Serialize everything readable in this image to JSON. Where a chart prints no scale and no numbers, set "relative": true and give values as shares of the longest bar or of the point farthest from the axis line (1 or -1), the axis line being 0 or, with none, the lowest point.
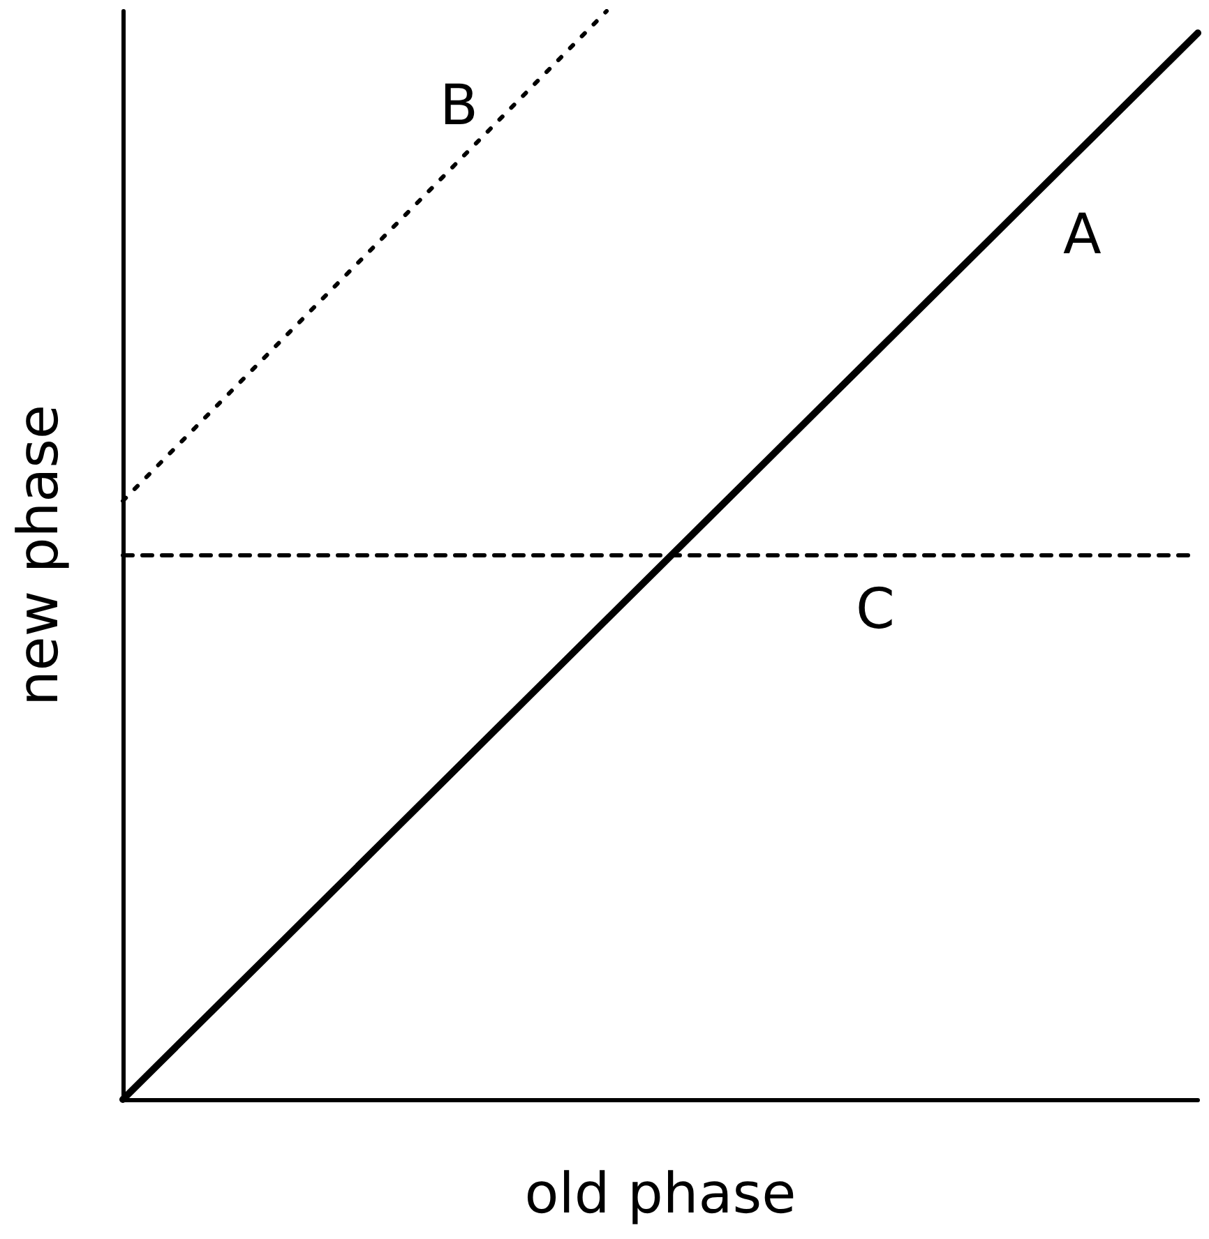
{
  "chart_data": {
    "type": "line",
    "relative": true,
    "xlabel": "old phase",
    "ylabel": "new phase",
    "grid": false,
    "legend": false,
    "marker": "none",
    "categories": [
      null,
      null,
      null,
      null,
      null,
      null,
      null,
      null,
      null,
      null,
      null,
      null,
      null,
      null,
      null,
      null,
      null,
      null,
      null,
      null,
      null
    ],
    "series": [
      {
        "name": "A",
        "color": "#000000",
        "line_style": "solid",
        "values": [
          0,
          0.049,
          0.098,
          0.147,
          0.196,
          0.245,
          0.294,
          0.343,
          0.392,
          0.441,
          0.49,
          0.539,
          0.588,
          0.637,
          0.686,
          0.735,
          0.784,
          0.833,
          0.882,
          0.931,
          0.98
        ]
      },
      {
        "name": "B",
        "color": "#000000",
        "line_style": "dotted",
        "values": [
          0.55,
          0.6,
          0.65,
          0.7,
          0.75,
          0.8,
          0.85,
          0.9,
          0.95,
          1,
          null,
          null,
          null,
          null,
          null,
          null,
          null,
          null,
          null,
          null,
          null
        ]
      },
      {
        "name": "C",
        "color": "#000000",
        "line_style": "dashed",
        "values": [
          0.5,
          0.5,
          0.5,
          0.5,
          0.5,
          0.5,
          0.5,
          0.5,
          0.5,
          0.5,
          0.5,
          0.5,
          0.5,
          0.5,
          0.5,
          0.5,
          0.5,
          0.5,
          0.5,
          0.5,
          0.5
        ]
      }
    ]
  }
}
